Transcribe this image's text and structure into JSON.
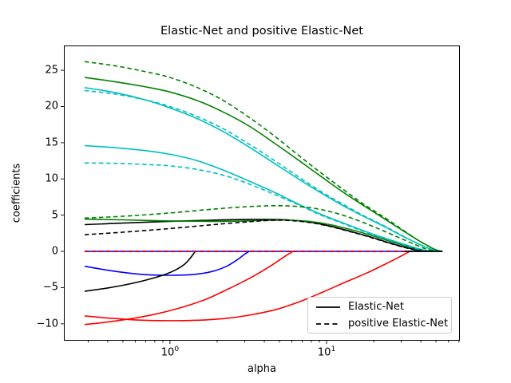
{
  "figure": {
    "title": "Elastic-Net and positive Elastic-Net",
    "xlabel": "alpha",
    "ylabel": "coefficients"
  },
  "legend": {
    "items": [
      {
        "label": "Elastic-Net",
        "style": "solid"
      },
      {
        "label": "positive Elastic-Net",
        "style": "dashed"
      }
    ]
  },
  "palette": {
    "blue": "#0000ff",
    "red": "#ff0000",
    "green": "#008000",
    "cyan": "#00bfbf",
    "black": "#000000",
    "legend_border": "#cccccc"
  },
  "axes": {
    "x": {
      "scale": "log",
      "major_ticks": [
        {
          "base": "10",
          "exp": "0",
          "value": 1
        },
        {
          "base": "10",
          "exp": "1",
          "value": 10
        }
      ],
      "minor_ticks": [
        0.3,
        0.4,
        0.5,
        0.6,
        0.7,
        0.8,
        0.9,
        2,
        3,
        4,
        5,
        6,
        7,
        8,
        9,
        20,
        30,
        40,
        50,
        60,
        70
      ]
    },
    "y": {
      "ticks": [
        {
          "label": "−10",
          "value": -10
        },
        {
          "label": "−5",
          "value": -5
        },
        {
          "label": "0",
          "value": 0
        },
        {
          "label": "5",
          "value": 5
        },
        {
          "label": "10",
          "value": 10
        },
        {
          "label": "15",
          "value": 15
        },
        {
          "label": "20",
          "value": 20
        },
        {
          "label": "25",
          "value": 25
        }
      ]
    }
  },
  "chart_data": {
    "type": "line",
    "title": "Elastic-Net and positive Elastic-Net",
    "xlabel": "alpha",
    "ylabel": "coefficients",
    "x_scale": "log",
    "x_range": [
      0.21,
      71
    ],
    "y_range": [
      -12.33,
      28.42
    ],
    "grid": false,
    "legend_position": "lower right",
    "series": [
      {
        "name": "pos-enet-b1",
        "color": "#0000ff",
        "dash": "dashed",
        "points": [
          [
            0.285,
            0
          ],
          [
            55,
            0
          ]
        ]
      },
      {
        "name": "pos-enet-k2",
        "color": "#000000",
        "dash": "dashed",
        "points": [
          [
            0.285,
            0
          ],
          [
            55,
            0
          ]
        ]
      },
      {
        "name": "pos-enet-r1",
        "color": "#ff0000",
        "dash": "dashed",
        "points": [
          [
            0.285,
            0
          ],
          [
            55,
            0
          ]
        ]
      },
      {
        "name": "enet-b2",
        "color": "#0000ff",
        "dash": "solid",
        "points": [
          [
            0.285,
            0
          ],
          [
            55,
            0
          ]
        ]
      },
      {
        "name": "enet-b1",
        "color": "#0000ff",
        "dash": "solid",
        "points": [
          [
            0.285,
            -2.05
          ],
          [
            0.4,
            -2.6
          ],
          [
            0.55,
            -3.0
          ],
          [
            0.75,
            -3.25
          ],
          [
            1.0,
            -3.3
          ],
          [
            1.3,
            -3.25
          ],
          [
            1.6,
            -3.05
          ],
          [
            1.95,
            -2.65
          ],
          [
            2.3,
            -2.05
          ],
          [
            2.65,
            -1.25
          ],
          [
            2.95,
            -0.5
          ],
          [
            3.2,
            0
          ]
        ]
      },
      {
        "name": "enet-k2",
        "color": "#000000",
        "dash": "solid",
        "points": [
          [
            0.285,
            -5.5
          ],
          [
            0.4,
            -5.05
          ],
          [
            0.55,
            -4.5
          ],
          [
            0.75,
            -3.8
          ],
          [
            0.95,
            -3.1
          ],
          [
            1.1,
            -2.5
          ],
          [
            1.25,
            -1.7
          ],
          [
            1.35,
            -0.9
          ],
          [
            1.45,
            0
          ]
        ]
      },
      {
        "name": "enet-r2",
        "color": "#ff0000",
        "dash": "solid",
        "points": [
          [
            0.285,
            -10.1
          ],
          [
            0.4,
            -9.75
          ],
          [
            0.6,
            -9.2
          ],
          [
            0.85,
            -8.55
          ],
          [
            1.2,
            -7.7
          ],
          [
            1.7,
            -6.6
          ],
          [
            2.4,
            -5.1
          ],
          [
            3.3,
            -3.6
          ],
          [
            4.4,
            -2.0
          ],
          [
            5.4,
            -0.7
          ],
          [
            6.1,
            0
          ]
        ]
      },
      {
        "name": "enet-r1",
        "color": "#ff0000",
        "dash": "solid",
        "points": [
          [
            0.285,
            -8.9
          ],
          [
            0.4,
            -9.2
          ],
          [
            0.6,
            -9.45
          ],
          [
            0.85,
            -9.55
          ],
          [
            1.2,
            -9.55
          ],
          [
            1.7,
            -9.45
          ],
          [
            2.4,
            -9.2
          ],
          [
            3.4,
            -8.7
          ],
          [
            4.8,
            -8.0
          ],
          [
            6.8,
            -6.9
          ],
          [
            9.5,
            -5.6
          ],
          [
            13,
            -4.3
          ],
          [
            18,
            -3.0
          ],
          [
            24,
            -1.7
          ],
          [
            29,
            -0.8
          ],
          [
            33,
            -0.15
          ],
          [
            34,
            0
          ]
        ]
      },
      {
        "name": "enet-c2",
        "color": "#00bfbf",
        "dash": "solid",
        "points": [
          [
            0.285,
            14.6
          ],
          [
            0.45,
            14.3
          ],
          [
            0.7,
            13.9
          ],
          [
            1.0,
            13.4
          ],
          [
            1.5,
            12.5
          ],
          [
            2.2,
            11.2
          ],
          [
            3.2,
            9.7
          ],
          [
            4.6,
            8.2
          ],
          [
            6.5,
            6.6
          ],
          [
            9,
            5.2
          ],
          [
            12.5,
            4.0
          ],
          [
            17,
            2.9
          ],
          [
            23,
            1.9
          ],
          [
            30,
            1.1
          ],
          [
            38,
            0.4
          ],
          [
            45,
            0.05
          ],
          [
            50,
            0
          ],
          [
            55,
            0
          ]
        ]
      },
      {
        "name": "enet-c1",
        "color": "#00bfbf",
        "dash": "solid",
        "points": [
          [
            0.285,
            22.6
          ],
          [
            0.45,
            21.9
          ],
          [
            0.7,
            20.9
          ],
          [
            1.0,
            19.8
          ],
          [
            1.5,
            18.3
          ],
          [
            2.2,
            16.5
          ],
          [
            3.2,
            14.4
          ],
          [
            4.6,
            12.2
          ],
          [
            6.5,
            10.1
          ],
          [
            9,
            8.2
          ],
          [
            12.5,
            6.4
          ],
          [
            17,
            4.9
          ],
          [
            23,
            3.5
          ],
          [
            30,
            2.2
          ],
          [
            38,
            1.1
          ],
          [
            45,
            0.4
          ],
          [
            50,
            0.1
          ],
          [
            55,
            0
          ]
        ]
      },
      {
        "name": "enet-g1",
        "color": "#008000",
        "dash": "solid",
        "points": [
          [
            0.285,
            24.0
          ],
          [
            0.45,
            23.4
          ],
          [
            0.7,
            22.7
          ],
          [
            1.0,
            22.0
          ],
          [
            1.5,
            20.8
          ],
          [
            2.2,
            19.2
          ],
          [
            3.2,
            17.3
          ],
          [
            4.6,
            15.0
          ],
          [
            6.5,
            12.7
          ],
          [
            9,
            10.5
          ],
          [
            12.5,
            8.3
          ],
          [
            17,
            6.4
          ],
          [
            23,
            4.6
          ],
          [
            30,
            3.0
          ],
          [
            38,
            1.6
          ],
          [
            45,
            0.7
          ],
          [
            50,
            0.2
          ],
          [
            55,
            0
          ]
        ]
      },
      {
        "name": "enet-k1",
        "color": "#000000",
        "dash": "solid",
        "points": [
          [
            0.285,
            3.7
          ],
          [
            0.5,
            3.9
          ],
          [
            1.0,
            4.15
          ],
          [
            1.8,
            4.3
          ],
          [
            3,
            4.4
          ],
          [
            4.5,
            4.4
          ],
          [
            6,
            4.3
          ],
          [
            8,
            4.0
          ],
          [
            10.5,
            3.5
          ],
          [
            14,
            2.8
          ],
          [
            19,
            2.0
          ],
          [
            25,
            1.2
          ],
          [
            32,
            0.55
          ],
          [
            40,
            0.1
          ],
          [
            45,
            0
          ]
        ]
      },
      {
        "name": "enet-g2",
        "color": "#008000",
        "dash": "solid",
        "points": [
          [
            0.285,
            4.45
          ],
          [
            0.5,
            4.35
          ],
          [
            1.0,
            4.2
          ],
          [
            1.8,
            4.15
          ],
          [
            3,
            4.2
          ],
          [
            4.5,
            4.3
          ],
          [
            6,
            4.3
          ],
          [
            8,
            4.1
          ],
          [
            10.5,
            3.7
          ],
          [
            14,
            3.05
          ],
          [
            19,
            2.25
          ],
          [
            25,
            1.45
          ],
          [
            32,
            0.75
          ],
          [
            40,
            0.2
          ],
          [
            45,
            0.05
          ],
          [
            50,
            0
          ]
        ]
      },
      {
        "name": "pos-enet-c2",
        "color": "#00bfbf",
        "dash": "dashed",
        "points": [
          [
            0.285,
            12.2
          ],
          [
            0.45,
            12.15
          ],
          [
            0.7,
            12.0
          ],
          [
            1.0,
            11.8
          ],
          [
            1.5,
            11.3
          ],
          [
            2.2,
            10.5
          ],
          [
            3.2,
            9.3
          ],
          [
            4.6,
            7.9
          ],
          [
            6.5,
            6.5
          ],
          [
            9,
            5.1
          ],
          [
            12.5,
            3.9
          ],
          [
            17,
            2.8
          ],
          [
            23,
            1.85
          ],
          [
            30,
            1.05
          ],
          [
            38,
            0.35
          ],
          [
            45,
            0.05
          ],
          [
            50,
            0
          ]
        ]
      },
      {
        "name": "pos-enet-c1",
        "color": "#00bfbf",
        "dash": "dashed",
        "points": [
          [
            0.285,
            22.2
          ],
          [
            0.45,
            21.7
          ],
          [
            0.7,
            20.9
          ],
          [
            1.0,
            20.0
          ],
          [
            1.5,
            18.6
          ],
          [
            2.2,
            16.9
          ],
          [
            3.2,
            14.8
          ],
          [
            4.6,
            12.6
          ],
          [
            6.5,
            10.4
          ],
          [
            9,
            8.4
          ],
          [
            12.5,
            6.6
          ],
          [
            17,
            5.0
          ],
          [
            23,
            3.6
          ],
          [
            30,
            2.25
          ],
          [
            38,
            1.1
          ],
          [
            45,
            0.4
          ],
          [
            50,
            0.1
          ],
          [
            55,
            0
          ]
        ]
      },
      {
        "name": "pos-enet-g1",
        "color": "#008000",
        "dash": "dashed",
        "points": [
          [
            0.285,
            26.2
          ],
          [
            0.45,
            25.6
          ],
          [
            0.7,
            24.8
          ],
          [
            1.0,
            24.0
          ],
          [
            1.5,
            22.6
          ],
          [
            2.2,
            20.8
          ],
          [
            3.2,
            18.5
          ],
          [
            4.6,
            16.0
          ],
          [
            6.5,
            13.4
          ],
          [
            9,
            11.0
          ],
          [
            12.5,
            8.7
          ],
          [
            17,
            6.6
          ],
          [
            23,
            4.8
          ],
          [
            30,
            3.1
          ],
          [
            38,
            1.6
          ],
          [
            45,
            0.7
          ],
          [
            50,
            0.2
          ],
          [
            55,
            0
          ]
        ]
      },
      {
        "name": "pos-enet-g2",
        "color": "#008000",
        "dash": "dashed",
        "points": [
          [
            0.285,
            4.6
          ],
          [
            0.5,
            4.85
          ],
          [
            1.0,
            5.3
          ],
          [
            1.8,
            5.8
          ],
          [
            3,
            6.15
          ],
          [
            4.5,
            6.3
          ],
          [
            6,
            6.25
          ],
          [
            8,
            6.0
          ],
          [
            10.5,
            5.5
          ],
          [
            14,
            4.7
          ],
          [
            19,
            3.6
          ],
          [
            25,
            2.5
          ],
          [
            32,
            1.5
          ],
          [
            40,
            0.6
          ],
          [
            45,
            0.2
          ],
          [
            50,
            0
          ]
        ]
      },
      {
        "name": "pos-enet-k1",
        "color": "#000000",
        "dash": "dashed",
        "points": [
          [
            0.285,
            2.3
          ],
          [
            0.5,
            2.65
          ],
          [
            1.0,
            3.15
          ],
          [
            1.8,
            3.65
          ],
          [
            3,
            4.05
          ],
          [
            4.5,
            4.3
          ],
          [
            6,
            4.25
          ],
          [
            8,
            3.95
          ],
          [
            10.5,
            3.45
          ],
          [
            14,
            2.75
          ],
          [
            19,
            1.95
          ],
          [
            25,
            1.15
          ],
          [
            32,
            0.5
          ],
          [
            40,
            0.05
          ],
          [
            45,
            0
          ]
        ]
      },
      {
        "name": "pos-enet-b2",
        "color": "#0000ff",
        "dash": "dashed",
        "points": [
          [
            0.285,
            0
          ],
          [
            55,
            0
          ]
        ]
      },
      {
        "name": "pos-enet-r2",
        "color": "#ff0000",
        "dash": "dashed",
        "points": [
          [
            0.285,
            0
          ],
          [
            31.5,
            0
          ]
        ]
      },
      {
        "name": "zero-line-black-segment",
        "color": "#000000",
        "dash": "solid",
        "points": [
          [
            31.5,
            0
          ],
          [
            55,
            0
          ]
        ]
      }
    ]
  }
}
